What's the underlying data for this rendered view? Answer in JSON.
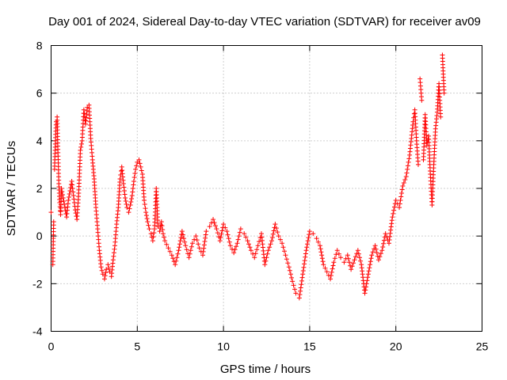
{
  "chart_data": {
    "type": "scatter",
    "title": "Day 001 of 2024, Sidereal Day-to-day VTEC variation (SDTVAR) for receiver av09",
    "xlabel": "GPS time / hours",
    "ylabel": "SDTVAR / TECUs",
    "xlim": [
      0,
      25
    ],
    "ylim": [
      -4,
      8
    ],
    "xticks": [
      0,
      5,
      10,
      15,
      20,
      25
    ],
    "yticks": [
      -4,
      -2,
      0,
      2,
      4,
      6,
      8
    ],
    "grid": true,
    "marker": "plus",
    "color": "#ff0000",
    "series": [
      {
        "name": "SDTVAR",
        "x": [
          0.0,
          0.1,
          0.15,
          0.2,
          0.25,
          0.3,
          0.35,
          0.4,
          0.45,
          0.5,
          0.55,
          0.6,
          0.7,
          0.8,
          0.9,
          1.0,
          1.1,
          1.2,
          1.3,
          1.4,
          1.5,
          1.6,
          1.7,
          1.8,
          1.9,
          2.0,
          2.1,
          2.2,
          2.3,
          2.4,
          2.5,
          2.6,
          2.7,
          2.8,
          2.9,
          3.0,
          3.1,
          3.2,
          3.3,
          3.4,
          3.5,
          3.6,
          3.7,
          3.8,
          3.9,
          4.0,
          4.1,
          4.2,
          4.3,
          4.4,
          4.5,
          4.6,
          4.7,
          4.8,
          4.9,
          5.0,
          5.1,
          5.2,
          5.3,
          5.4,
          5.5,
          5.6,
          5.7,
          5.8,
          5.9,
          6.0,
          6.1,
          6.2,
          6.3,
          6.4,
          6.5,
          6.6,
          6.8,
          7.0,
          7.2,
          7.4,
          7.6,
          7.8,
          8.0,
          8.2,
          8.4,
          8.6,
          8.8,
          9.0,
          9.2,
          9.4,
          9.6,
          9.8,
          10.0,
          10.2,
          10.4,
          10.6,
          10.8,
          11.0,
          11.2,
          11.4,
          11.6,
          11.8,
          12.0,
          12.2,
          12.4,
          12.6,
          12.8,
          13.0,
          13.2,
          13.4,
          13.6,
          13.8,
          14.0,
          14.2,
          14.4,
          14.6,
          14.8,
          15.0,
          15.2,
          15.4,
          15.6,
          15.8,
          16.0,
          16.2,
          16.4,
          16.6,
          16.8,
          17.0,
          17.2,
          17.4,
          17.6,
          17.8,
          18.0,
          18.2,
          18.4,
          18.6,
          18.8,
          19.0,
          19.2,
          19.4,
          19.6,
          19.8,
          20.0,
          20.2,
          20.4,
          20.6,
          20.8,
          21.0,
          21.1,
          21.2,
          21.3,
          21.4,
          21.5,
          21.6,
          21.7,
          21.8,
          21.9,
          22.0,
          22.1,
          22.2,
          22.3,
          22.4,
          22.5,
          22.6,
          22.7,
          22.8
        ],
        "y": [
          1.0,
          -1.2,
          0.6,
          2.8,
          4.0,
          4.8,
          5.0,
          3.5,
          2.2,
          1.4,
          0.9,
          2.0,
          1.6,
          1.2,
          0.8,
          1.5,
          1.9,
          2.3,
          1.7,
          1.1,
          0.7,
          1.8,
          3.6,
          4.0,
          5.3,
          4.7,
          5.4,
          5.5,
          4.1,
          3.2,
          2.4,
          1.2,
          0.3,
          -0.6,
          -1.3,
          -1.6,
          -1.8,
          -1.4,
          -1.2,
          -1.5,
          -1.7,
          -1.0,
          -0.4,
          0.5,
          1.2,
          2.4,
          2.9,
          2.2,
          1.6,
          1.2,
          1.0,
          1.3,
          1.7,
          2.3,
          2.8,
          3.1,
          3.2,
          2.9,
          2.6,
          1.5,
          1.0,
          0.6,
          0.3,
          0.1,
          -0.2,
          0.3,
          2.0,
          0.4,
          0.2,
          0.6,
          0.1,
          -0.2,
          -0.5,
          -0.8,
          -1.2,
          -0.6,
          0.2,
          -0.4,
          -0.9,
          -0.3,
          0.0,
          -0.5,
          -0.8,
          0.2,
          0.4,
          0.7,
          0.3,
          -0.2,
          0.5,
          0.2,
          -0.4,
          -0.7,
          -0.3,
          0.3,
          0.1,
          -0.2,
          -0.6,
          -0.9,
          -0.4,
          0.1,
          -1.2,
          -0.6,
          -0.2,
          0.5,
          0.0,
          -0.3,
          -0.8,
          -1.3,
          -1.9,
          -2.4,
          -2.6,
          -1.6,
          -0.6,
          0.2,
          0.1,
          -0.1,
          -0.4,
          -1.2,
          -1.5,
          -1.8,
          -1.1,
          -0.6,
          -0.9,
          -1.1,
          -0.8,
          -1.4,
          -1.0,
          -0.6,
          -1.2,
          -2.4,
          -1.6,
          -0.8,
          -0.4,
          -1.0,
          -0.6,
          0.1,
          -0.3,
          0.8,
          1.5,
          1.2,
          2.1,
          2.5,
          3.4,
          4.8,
          5.3,
          4.0,
          3.0,
          6.6,
          5.7,
          3.2,
          5.1,
          3.8,
          4.2,
          2.6,
          1.3,
          3.0,
          4.5,
          5.2,
          6.4,
          5.0,
          7.6,
          6.0
        ]
      }
    ]
  }
}
